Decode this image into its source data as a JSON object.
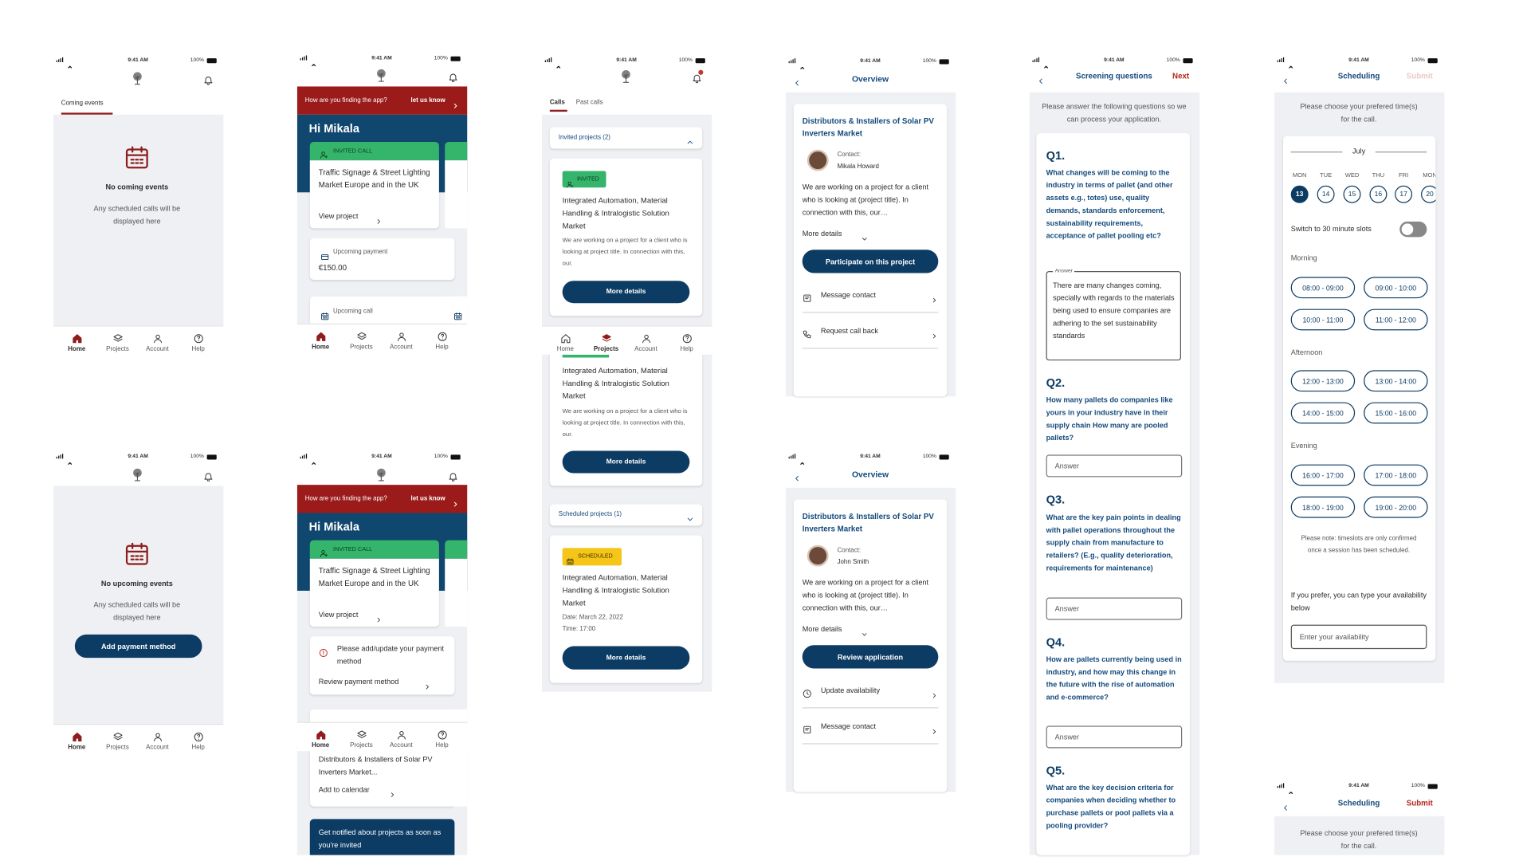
{
  "status_bar": {
    "time": "9:41 AM",
    "battery": "100%"
  },
  "nav": [
    "Home",
    "Projects",
    "Account",
    "Help"
  ],
  "screens": {
    "home_empty": {
      "tab": "Coming events",
      "title": "No coming events",
      "message": "Any scheduled calls will be displayed here"
    },
    "home_empty_payment": {
      "title": "No upcoming events",
      "message": "Any scheduled calls will be displayed here",
      "button": "Add payment method"
    },
    "home_invited": {
      "banner": "How are you finding the app?",
      "banner_link": "let us know",
      "greeting": "Hi Mikala",
      "badge": "INVITED CALL",
      "project": "Traffic Signage & Street Lighting Market Europe and in the UK",
      "link": "View project",
      "payment_label": "Upcoming payment",
      "payment_amount": "€150.00",
      "call_label": "Upcoming call"
    },
    "home_payment": {
      "banner": "How are you finding the app?",
      "banner_link": "let us know",
      "greeting": "Hi Mikala",
      "badge": "INVITED CALL",
      "project": "Traffic Signage & Street Lighting Market Europe and in the UK",
      "link": "View project",
      "alert": "Please add/update your payment method",
      "alert_link": "Review payment method",
      "event": "Distributors & Installers of Solar PV Inverters Market...",
      "event_link": "Add to calendar",
      "notify": "Get notified about projects as soon as you're invited"
    },
    "projects": {
      "tabs": [
        "Calls",
        "Past calls"
      ],
      "invited_header": "Invited projects (2)",
      "scheduled_header": "Scheduled projects (1)",
      "cards": [
        {
          "badge": "INVITED",
          "title": "Integrated Automation, Material Handling & Intralogistic Solution Market",
          "description": "We are working on a project for a client who is looking at project title. In connection with this, our.",
          "button": "More details"
        },
        {
          "title": "Integrated Automation, Material Handling & Intralogistic Solution Market",
          "description": "We are working on a project for a client who is looking at project title. In connection with this, our.",
          "button": "More details"
        },
        {
          "badge": "SCHEDULED",
          "title": "Integrated Automation, Material Handling & Intralogistic Solution Market",
          "date": "Date: March 22, 2022",
          "time": "Time: 17:00",
          "button": "More details"
        }
      ]
    },
    "overview_invited": {
      "title": "Overview",
      "project": "Distributors & Installers of Solar PV Inverters Market",
      "contact_label": "Contact:",
      "contact": "Mikala Howard",
      "description": "We are working on a project for a client who is looking at (project title). In connection with this, our…",
      "more": "More details",
      "button": "Participate on this project",
      "actions": [
        "Message contact",
        "Request call back"
      ]
    },
    "overview_applied": {
      "title": "Overview",
      "project": "Distributors & Installers of Solar PV Inverters Market",
      "contact_label": "Contact:",
      "contact": "John Smith",
      "description": "We are working on a project for a client who is looking at (project title). In connection with this, our…",
      "more": "More details",
      "button": "Review application",
      "actions": [
        "Update availability",
        "Message contact"
      ]
    },
    "screening": {
      "title": "Screening questions",
      "action": "Next",
      "intro": "Please answer the following questions so we can process your application.",
      "answer_legend": "Answer",
      "placeholder": "Answer",
      "questions": [
        {
          "label": "Q1.",
          "text": "What changes will be coming to the industry in terms of pallet (and other assets e.g., totes) use, quality demands, standards enforcement, sustainability requirements, acceptance of pallet pooling etc?",
          "answer": "There are many changes coming, specially with regards to the materials being used to ensure companies are adhering to the set sustainability standards"
        },
        {
          "label": "Q2.",
          "text": "How many pallets do companies like yours in your industry have in their supply chain How many are pooled pallets?"
        },
        {
          "label": "Q3.",
          "text": "What are the key pain points in dealing with pallet operations throughout the supply chain from manufacture to retailers? (E.g., quality deterioration, requirements for maintenance)"
        },
        {
          "label": "Q4.",
          "text": "How are pallets currently being used in industry, and how may this change in the future with the rise of automation and e-commerce?"
        },
        {
          "label": "Q5.",
          "text": "What are the key decision criteria for companies when deciding whether to purchase pallets or pool pallets via a pooling provider?"
        }
      ]
    },
    "scheduling": {
      "title": "Scheduling",
      "action": "Submit",
      "intro": "Please choose your prefered time(s) for the call.",
      "month": "July",
      "days": [
        "MON",
        "TUE",
        "WED",
        "THU",
        "FRI",
        "MON"
      ],
      "dates": [
        13,
        14,
        15,
        16,
        17,
        20
      ],
      "toggle": "Switch to 30 minute slots",
      "periods": [
        {
          "name": "Morning",
          "slots": [
            "08:00 - 09:00",
            "09:00 - 10:00",
            "10:00 - 11:00",
            "11:00 - 12:00"
          ]
        },
        {
          "name": "Afternoon",
          "slots": [
            "12:00 - 13:00",
            "13:00 - 14:00",
            "14:00 - 15:00",
            "15:00 - 16:00"
          ]
        },
        {
          "name": "Evening",
          "slots": [
            "16:00 - 17:00",
            "17:00 - 18:00",
            "18:00 - 19:00",
            "19:00 - 20:00"
          ]
        }
      ],
      "note": "Please note: timeslots are only confirmed once a session has been scheduled.",
      "prompt": "If you prefer, you can type your availability below",
      "input": "Enter your availability"
    }
  }
}
